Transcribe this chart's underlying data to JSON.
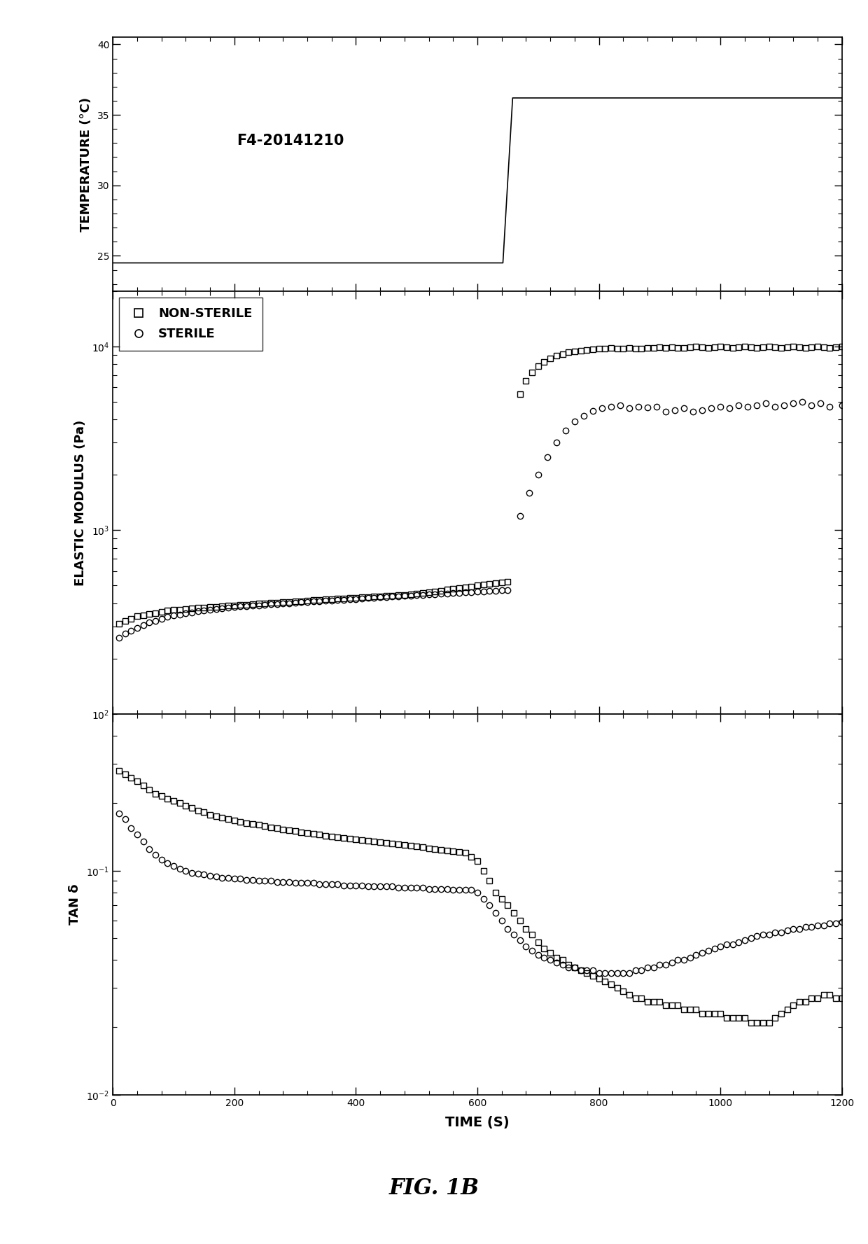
{
  "title": "F4-20141210",
  "fig_label": "FIG. 1B",
  "xlabel": "TIME (S)",
  "ylabel_top": "TEMPERATURE (°C)",
  "ylabel_mid": "ELASTIC MODULUS (Pa)",
  "ylabel_bot": "TAN δ",
  "xlim": [
    0,
    1200
  ],
  "temp_ylim": [
    23,
    40
  ],
  "temp_yticks": [
    25,
    30,
    35,
    40
  ],
  "em_ylim": [
    100,
    20000
  ],
  "tan_ylim": [
    0.01,
    0.5
  ],
  "temp_line": {
    "x": [
      0,
      640,
      640,
      660,
      660,
      1200
    ],
    "y": [
      24.5,
      24.5,
      24.5,
      36.0,
      36.0,
      36.0
    ]
  },
  "nonsterile_em_low_x": [
    10,
    20,
    30,
    40,
    50,
    60,
    70,
    80,
    90,
    100,
    110,
    120,
    130,
    140,
    150,
    160,
    170,
    180,
    190,
    200,
    210,
    220,
    230,
    240,
    250,
    260,
    270,
    280,
    290,
    300,
    310,
    320,
    330,
    340,
    350,
    360,
    370,
    380,
    390,
    400,
    410,
    420,
    430,
    440,
    450,
    460,
    470,
    480,
    490,
    500,
    510,
    520,
    530,
    540,
    550,
    560,
    570,
    580,
    590,
    600,
    610,
    620,
    630,
    640,
    650
  ],
  "nonsterile_em_low_y": [
    310,
    320,
    330,
    340,
    345,
    350,
    355,
    360,
    365,
    368,
    370,
    372,
    375,
    378,
    380,
    382,
    384,
    386,
    388,
    390,
    392,
    394,
    396,
    398,
    400,
    402,
    404,
    406,
    408,
    410,
    412,
    414,
    416,
    418,
    420,
    422,
    424,
    426,
    428,
    430,
    432,
    434,
    436,
    438,
    440,
    442,
    444,
    446,
    448,
    450,
    455,
    460,
    465,
    470,
    475,
    480,
    485,
    490,
    495,
    500,
    505,
    510,
    515,
    520,
    525
  ],
  "nonsterile_em_high_x": [
    670,
    680,
    690,
    700,
    710,
    720,
    730,
    740,
    750,
    760,
    770,
    780,
    790,
    800,
    810,
    820,
    830,
    840,
    850,
    860,
    870,
    880,
    890,
    900,
    910,
    920,
    930,
    940,
    950,
    960,
    970,
    980,
    990,
    1000,
    1010,
    1020,
    1030,
    1040,
    1050,
    1060,
    1070,
    1080,
    1090,
    1100,
    1110,
    1120,
    1130,
    1140,
    1150,
    1160,
    1170,
    1180,
    1190,
    1200
  ],
  "nonsterile_em_high_y": [
    5500,
    6500,
    7200,
    7800,
    8200,
    8600,
    8900,
    9100,
    9300,
    9400,
    9500,
    9600,
    9650,
    9700,
    9750,
    9800,
    9700,
    9750,
    9800,
    9750,
    9700,
    9800,
    9850,
    9900,
    9800,
    9900,
    9850,
    9800,
    9900,
    9950,
    9900,
    9850,
    9900,
    9950,
    9900,
    9850,
    9900,
    9950,
    9900,
    9850,
    9900,
    9950,
    9900,
    9850,
    9900,
    9950,
    9900,
    9850,
    9900,
    9950,
    9900,
    9850,
    9900,
    9950
  ],
  "sterile_em_low_x": [
    10,
    20,
    30,
    40,
    50,
    60,
    70,
    80,
    90,
    100,
    110,
    120,
    130,
    140,
    150,
    160,
    170,
    180,
    190,
    200,
    210,
    220,
    230,
    240,
    250,
    260,
    270,
    280,
    290,
    300,
    310,
    320,
    330,
    340,
    350,
    360,
    370,
    380,
    390,
    400,
    410,
    420,
    430,
    440,
    450,
    460,
    470,
    480,
    490,
    500,
    510,
    520,
    530,
    540,
    550,
    560,
    570,
    580,
    590,
    600,
    610,
    620,
    630,
    640,
    650
  ],
  "sterile_em_low_y": [
    260,
    275,
    285,
    295,
    305,
    315,
    322,
    330,
    337,
    343,
    348,
    353,
    358,
    362,
    366,
    370,
    373,
    376,
    379,
    382,
    385,
    387,
    389,
    391,
    393,
    395,
    397,
    399,
    401,
    403,
    405,
    407,
    409,
    411,
    413,
    415,
    417,
    419,
    421,
    423,
    425,
    427,
    429,
    431,
    433,
    435,
    437,
    439,
    441,
    443,
    445,
    447,
    449,
    451,
    453,
    455,
    457,
    459,
    461,
    463,
    465,
    467,
    469,
    471,
    473
  ],
  "sterile_em_high_x": [
    670,
    685,
    700,
    715,
    730,
    745,
    760,
    775,
    790,
    805,
    820,
    835,
    850,
    865,
    880,
    895,
    910,
    925,
    940,
    955,
    970,
    985,
    1000,
    1015,
    1030,
    1045,
    1060,
    1075,
    1090,
    1105,
    1120,
    1135,
    1150,
    1165,
    1180,
    1200
  ],
  "sterile_em_high_y": [
    1200,
    1600,
    2000,
    2500,
    3000,
    3500,
    3900,
    4200,
    4450,
    4600,
    4700,
    4800,
    4600,
    4700,
    4650,
    4700,
    4400,
    4500,
    4600,
    4400,
    4500,
    4600,
    4700,
    4600,
    4800,
    4700,
    4800,
    4900,
    4700,
    4800,
    4900,
    5000,
    4800,
    4900,
    4700,
    4800
  ],
  "nonsterile_tan_x": [
    10,
    20,
    30,
    40,
    50,
    60,
    70,
    80,
    90,
    100,
    110,
    120,
    130,
    140,
    150,
    160,
    170,
    180,
    190,
    200,
    210,
    220,
    230,
    240,
    250,
    260,
    270,
    280,
    290,
    300,
    310,
    320,
    330,
    340,
    350,
    360,
    370,
    380,
    390,
    400,
    410,
    420,
    430,
    440,
    450,
    460,
    470,
    480,
    490,
    500,
    510,
    520,
    530,
    540,
    550,
    560,
    570,
    580,
    590,
    600,
    610,
    620,
    630,
    640,
    650,
    660,
    670,
    680,
    690,
    700,
    710,
    720,
    730,
    740,
    750,
    760,
    770,
    780,
    790,
    800,
    810,
    820,
    830,
    840,
    850,
    860,
    870,
    880,
    890,
    900,
    910,
    920,
    930,
    940,
    950,
    960,
    970,
    980,
    990,
    1000,
    1010,
    1020,
    1030,
    1040,
    1050,
    1060,
    1070,
    1080,
    1090,
    1100,
    1110,
    1120,
    1130,
    1140,
    1150,
    1160,
    1170,
    1180,
    1190,
    1200
  ],
  "nonsterile_tan_y": [
    0.28,
    0.27,
    0.26,
    0.25,
    0.24,
    0.23,
    0.22,
    0.215,
    0.21,
    0.205,
    0.2,
    0.195,
    0.19,
    0.185,
    0.182,
    0.178,
    0.175,
    0.172,
    0.17,
    0.168,
    0.165,
    0.163,
    0.162,
    0.16,
    0.158,
    0.156,
    0.155,
    0.153,
    0.151,
    0.15,
    0.148,
    0.147,
    0.146,
    0.145,
    0.143,
    0.142,
    0.141,
    0.14,
    0.139,
    0.138,
    0.137,
    0.136,
    0.135,
    0.134,
    0.133,
    0.132,
    0.131,
    0.13,
    0.129,
    0.128,
    0.127,
    0.126,
    0.125,
    0.124,
    0.123,
    0.122,
    0.121,
    0.12,
    0.115,
    0.11,
    0.1,
    0.09,
    0.08,
    0.075,
    0.07,
    0.065,
    0.06,
    0.055,
    0.052,
    0.048,
    0.045,
    0.043,
    0.041,
    0.04,
    0.038,
    0.037,
    0.036,
    0.035,
    0.034,
    0.033,
    0.032,
    0.031,
    0.03,
    0.029,
    0.028,
    0.027,
    0.027,
    0.026,
    0.026,
    0.026,
    0.025,
    0.025,
    0.025,
    0.024,
    0.024,
    0.024,
    0.023,
    0.023,
    0.023,
    0.023,
    0.022,
    0.022,
    0.022,
    0.022,
    0.021,
    0.021,
    0.021,
    0.021,
    0.022,
    0.023,
    0.024,
    0.025,
    0.026,
    0.026,
    0.027,
    0.027,
    0.028,
    0.028,
    0.027,
    0.027
  ],
  "sterile_tan_x": [
    10,
    20,
    30,
    40,
    50,
    60,
    70,
    80,
    90,
    100,
    110,
    120,
    130,
    140,
    150,
    160,
    170,
    180,
    190,
    200,
    210,
    220,
    230,
    240,
    250,
    260,
    270,
    280,
    290,
    300,
    310,
    320,
    330,
    340,
    350,
    360,
    370,
    380,
    390,
    400,
    410,
    420,
    430,
    440,
    450,
    460,
    470,
    480,
    490,
    500,
    510,
    520,
    530,
    540,
    550,
    560,
    570,
    580,
    590,
    600,
    610,
    620,
    630,
    640,
    650,
    660,
    670,
    680,
    690,
    700,
    710,
    720,
    730,
    740,
    750,
    760,
    770,
    780,
    790,
    800,
    810,
    820,
    830,
    840,
    850,
    860,
    870,
    880,
    890,
    900,
    910,
    920,
    930,
    940,
    950,
    960,
    970,
    980,
    990,
    1000,
    1010,
    1020,
    1030,
    1040,
    1050,
    1060,
    1070,
    1080,
    1090,
    1100,
    1110,
    1120,
    1130,
    1140,
    1150,
    1160,
    1170,
    1180,
    1190,
    1200
  ],
  "sterile_tan_y": [
    0.18,
    0.17,
    0.155,
    0.145,
    0.135,
    0.125,
    0.118,
    0.112,
    0.108,
    0.105,
    0.102,
    0.1,
    0.098,
    0.097,
    0.096,
    0.095,
    0.094,
    0.093,
    0.093,
    0.092,
    0.092,
    0.091,
    0.091,
    0.09,
    0.09,
    0.09,
    0.089,
    0.089,
    0.089,
    0.088,
    0.088,
    0.088,
    0.088,
    0.087,
    0.087,
    0.087,
    0.087,
    0.086,
    0.086,
    0.086,
    0.086,
    0.085,
    0.085,
    0.085,
    0.085,
    0.085,
    0.084,
    0.084,
    0.084,
    0.084,
    0.084,
    0.083,
    0.083,
    0.083,
    0.083,
    0.082,
    0.082,
    0.082,
    0.082,
    0.08,
    0.075,
    0.07,
    0.065,
    0.06,
    0.055,
    0.052,
    0.049,
    0.046,
    0.044,
    0.042,
    0.041,
    0.04,
    0.039,
    0.038,
    0.037,
    0.037,
    0.036,
    0.036,
    0.036,
    0.035,
    0.035,
    0.035,
    0.035,
    0.035,
    0.035,
    0.036,
    0.036,
    0.037,
    0.037,
    0.038,
    0.038,
    0.039,
    0.04,
    0.04,
    0.041,
    0.042,
    0.043,
    0.044,
    0.045,
    0.046,
    0.047,
    0.047,
    0.048,
    0.049,
    0.05,
    0.051,
    0.052,
    0.052,
    0.053,
    0.053,
    0.054,
    0.055,
    0.055,
    0.056,
    0.056,
    0.057,
    0.057,
    0.058,
    0.058,
    0.059
  ]
}
